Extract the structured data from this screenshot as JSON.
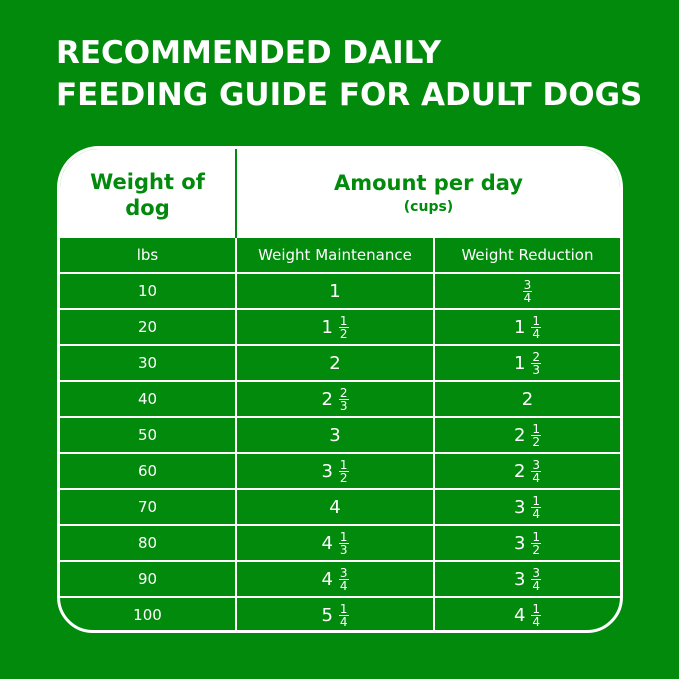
{
  "title": [
    "RECOMMENDED DAILY",
    "FEEDING GUIDE FOR ADULT DOGS"
  ],
  "header": {
    "col1": [
      "Weight of",
      "dog"
    ],
    "col2": "Amount per day",
    "col2_sub": "(cups)"
  },
  "subheader": {
    "c1": "lbs",
    "c2": "Weight Maintenance",
    "c3": "Weight Reduction"
  },
  "rows": [
    {
      "lbs": "10",
      "m": {
        "w": "1",
        "n": "",
        "d": ""
      },
      "r": {
        "w": "",
        "n": "3",
        "d": "4"
      }
    },
    {
      "lbs": "20",
      "m": {
        "w": "1",
        "n": "1",
        "d": "2"
      },
      "r": {
        "w": "1",
        "n": "1",
        "d": "4"
      }
    },
    {
      "lbs": "30",
      "m": {
        "w": "2",
        "n": "",
        "d": ""
      },
      "r": {
        "w": "1",
        "n": "2",
        "d": "3"
      }
    },
    {
      "lbs": "40",
      "m": {
        "w": "2",
        "n": "2",
        "d": "3"
      },
      "r": {
        "w": "2",
        "n": "",
        "d": ""
      }
    },
    {
      "lbs": "50",
      "m": {
        "w": "3",
        "n": "",
        "d": ""
      },
      "r": {
        "w": "2",
        "n": "1",
        "d": "2"
      }
    },
    {
      "lbs": "60",
      "m": {
        "w": "3",
        "n": "1",
        "d": "2"
      },
      "r": {
        "w": "2",
        "n": "3",
        "d": "4"
      }
    },
    {
      "lbs": "70",
      "m": {
        "w": "4",
        "n": "",
        "d": ""
      },
      "r": {
        "w": "3",
        "n": "1",
        "d": "4"
      }
    },
    {
      "lbs": "80",
      "m": {
        "w": "4",
        "n": "1",
        "d": "3"
      },
      "r": {
        "w": "3",
        "n": "1",
        "d": "2"
      }
    },
    {
      "lbs": "90",
      "m": {
        "w": "4",
        "n": "3",
        "d": "4"
      },
      "r": {
        "w": "3",
        "n": "3",
        "d": "4"
      }
    },
    {
      "lbs": "100",
      "m": {
        "w": "5",
        "n": "1",
        "d": "4"
      },
      "r": {
        "w": "4",
        "n": "1",
        "d": "4"
      }
    }
  ],
  "colors": {
    "background": "#028a0c",
    "header_bg": "#ffffff",
    "header_text": "#028a0c"
  }
}
